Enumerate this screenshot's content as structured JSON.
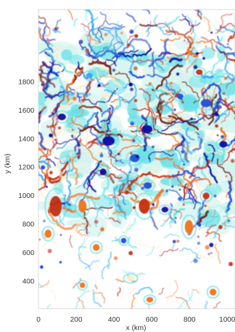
{
  "chart_data": {
    "type": "heatmap",
    "title": "",
    "xlabel": "x (km)",
    "ylabel": "y (km)",
    "xlim": [
      0,
      1000
    ],
    "ylim": [
      280,
      1850
    ],
    "xticks": [
      "0",
      "200",
      "400",
      "600",
      "800",
      "1000"
    ],
    "xtick_values": [
      0,
      200,
      400,
      600,
      800,
      1000
    ],
    "yticks": [
      "400",
      "600",
      "800",
      "1000",
      "1200",
      "1400",
      "1600",
      "1800"
    ],
    "ytick_values": [
      400,
      600,
      800,
      1000,
      1200,
      1400,
      1600,
      1800
    ],
    "colormap": [
      "#0a0aa0",
      "#1e50d8",
      "#2fa8f0",
      "#66e0e6",
      "#d4f4f0",
      "#ffffff",
      "#f8eec8",
      "#f6c060",
      "#ee7418",
      "#c42e10",
      "#7a1a0a"
    ],
    "grid": false,
    "legend": "none"
  }
}
